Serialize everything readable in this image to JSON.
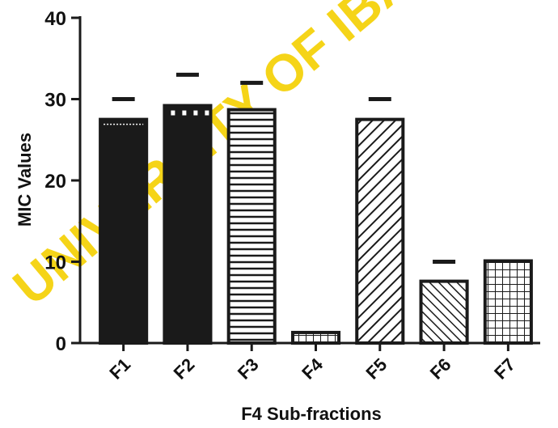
{
  "watermark": {
    "text": "UNIVERSITY OF IBADAN",
    "color": "#f5d000"
  },
  "chart_data": {
    "type": "bar",
    "title": "",
    "xlabel": "F4 Sub-fractions",
    "ylabel": "MIC Values",
    "categories": [
      "F1",
      "F2",
      "F3",
      "F4",
      "F5",
      "F6",
      "F7"
    ],
    "values": [
      27.5,
      29.2,
      28.7,
      1.3,
      27.5,
      7.6,
      10.1
    ],
    "error_upper": [
      30,
      33,
      32,
      null,
      30,
      10,
      null
    ],
    "patterns": [
      "solid",
      "solid-notched",
      "horizontal-lines",
      "grid",
      "diagonal-up",
      "diagonal-down",
      "grid"
    ],
    "ylim": [
      0,
      40
    ],
    "yticks": [
      0,
      10,
      20,
      30,
      40
    ],
    "grid": false,
    "legend": "none",
    "bar_color": "#1a1a1a"
  }
}
